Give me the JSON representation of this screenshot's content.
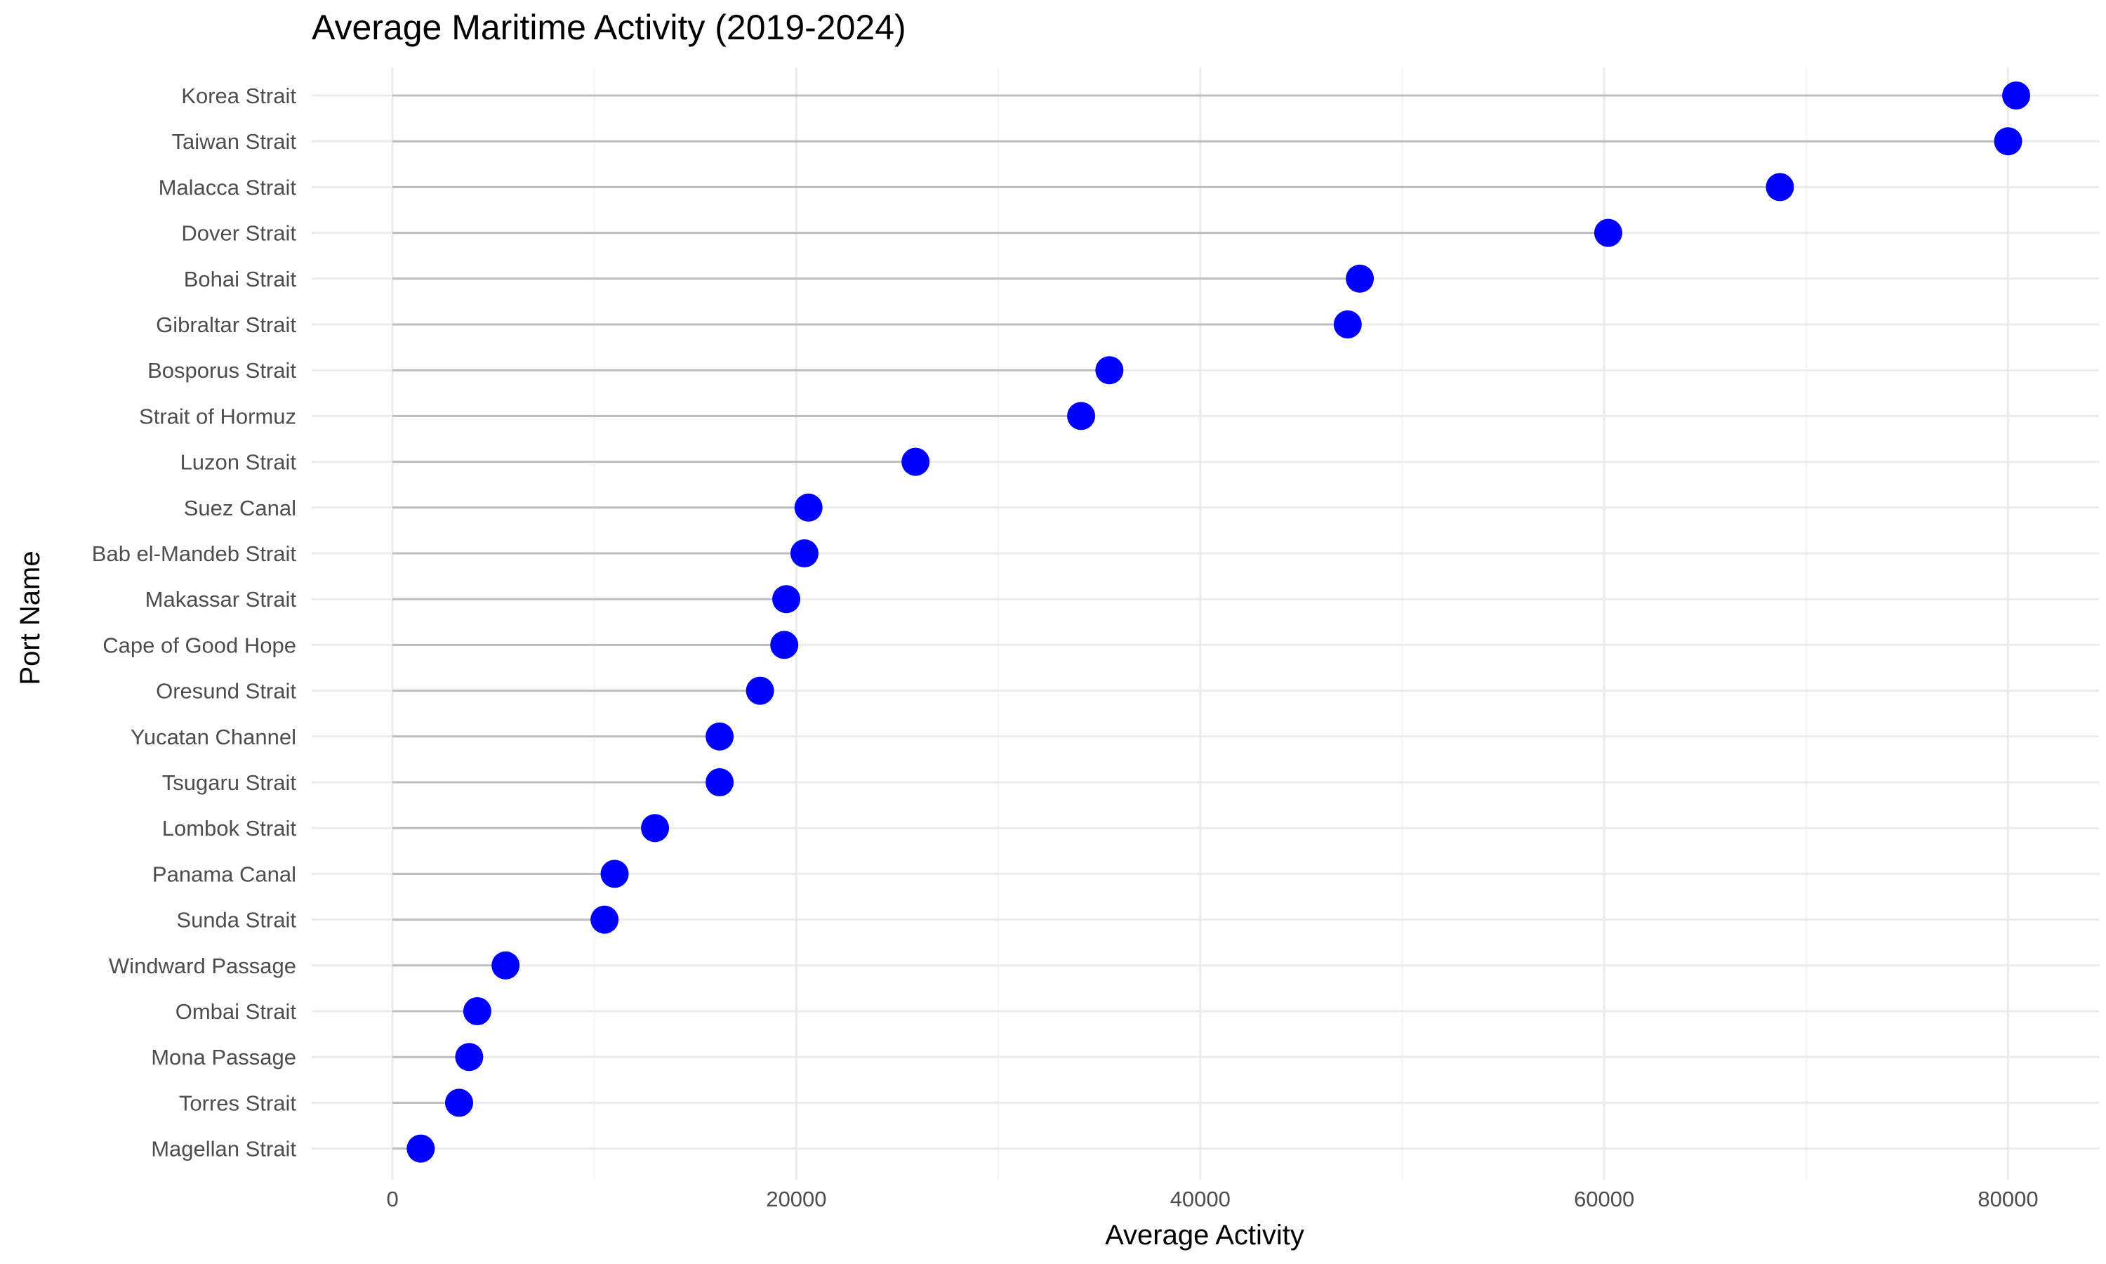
{
  "chart_data": {
    "type": "lollipop",
    "title": "Average Maritime Activity (2019-2024)",
    "xlabel": "Average Activity",
    "ylabel": "Port Name",
    "xlim": [
      -4000,
      84500
    ],
    "x_ticks": [
      0,
      20000,
      40000,
      60000,
      80000
    ],
    "grid": true,
    "categories": [
      "Korea Strait",
      "Taiwan Strait",
      "Malacca Strait",
      "Dover Strait",
      "Bohai Strait",
      "Gibraltar Strait",
      "Bosporus Strait",
      "Strait of Hormuz",
      "Luzon Strait",
      "Suez Canal",
      "Bab el-Mandeb Strait",
      "Makassar Strait",
      "Cape of Good Hope",
      "Oresund Strait",
      "Yucatan Channel",
      "Tsugaru Strait",
      "Lombok Strait",
      "Panama Canal",
      "Sunda Strait",
      "Windward Passage",
      "Ombai Strait",
      "Mona Passage",
      "Torres Strait",
      "Magellan Strait"
    ],
    "values": [
      80400,
      80000,
      68700,
      60200,
      47900,
      47300,
      35500,
      34100,
      25900,
      20600,
      20400,
      19500,
      19400,
      18200,
      16200,
      16200,
      13000,
      11000,
      10500,
      5600,
      4200,
      3800,
      3300,
      1400
    ],
    "colors": {
      "point": "#0000ff",
      "stem": "#bebebe",
      "grid_major": "#ebebeb",
      "grid_minor": "#f4f4f4"
    }
  }
}
